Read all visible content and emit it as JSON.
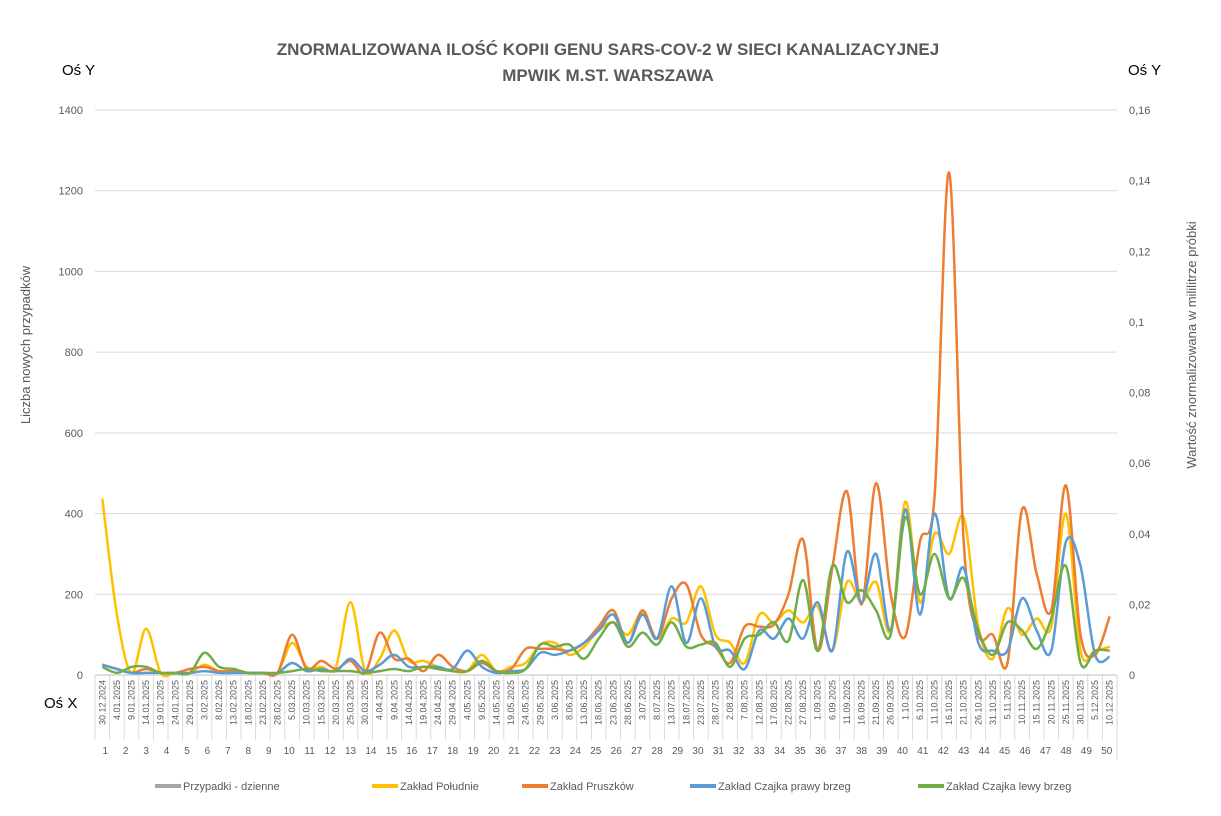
{
  "chart_data": {
    "type": "line",
    "title": [
      "ZNORMALIZOWANA ILOŚĆ KOPII GENU SARS-COV-2 W SIECI KANALIZACYJNEJ",
      "MPWIK M.ST. WARSZAWA"
    ],
    "y_axis_name": "Oś Y",
    "y2_axis_name": "Oś Y",
    "x_axis_name": "Oś X",
    "y_label": "Liczba nowych przypadków",
    "y2_label": "Wartość znormalizowana  w mililitrze próbki",
    "categories": [
      "30.12.2024",
      "4.01.2025",
      "9.01.2025",
      "14.01.2025",
      "19.01.2025",
      "24.01.2025",
      "29.01.2025",
      "3.02.2025",
      "8.02.2025",
      "13.02.2025",
      "18.02.2025",
      "23.02.2025",
      "28.02.2025",
      "5.03.2025",
      "10.03.2025",
      "15.03.2025",
      "20.03.2025",
      "25.03.2025",
      "30.03.2025",
      "4.04.2025",
      "9.04.2025",
      "14.04.2025",
      "19.04.2025",
      "24.04.2025",
      "29.04.2025",
      "4.05.2025",
      "9.05.2025",
      "14.05.2025",
      "19.05.2025",
      "24.05.2025",
      "29.05.2025",
      "3.06.2025",
      "8.06.2025",
      "13.06.2025",
      "18.06.2025",
      "23.06.2025",
      "28.06.2025",
      "3.07.2025",
      "8.07.2025",
      "13.07.2025",
      "18.07.2025",
      "23.07.2025",
      "28.07.2025",
      "2.08.2025",
      "7.08.2025",
      "12.08.2025",
      "17.08.2025",
      "22.08.2025",
      "27.08.2025",
      "1.09.2025",
      "6.09.2025",
      "11.09.2025",
      "16.09.2025",
      "21.09.2025",
      "26.09.2025",
      "1.10.2025",
      "6.10.2025",
      "11.10.2025",
      "16.10.2025",
      "21.10.2025",
      "26.10.2025",
      "31.10.2025",
      "5.11.2025",
      "10.11.2025",
      "15.11.2025",
      "20.11.2025",
      "25.11.2025",
      "30.11.2025",
      "5.12.2025",
      "10.12.2025"
    ],
    "weeks": [
      1,
      2,
      3,
      4,
      5,
      6,
      7,
      8,
      9,
      10,
      11,
      12,
      13,
      14,
      15,
      16,
      17,
      18,
      19,
      20,
      21,
      22,
      23,
      24,
      25,
      26,
      27,
      28,
      29,
      30,
      31,
      32,
      33,
      34,
      35,
      36,
      37,
      38,
      39,
      40,
      41,
      42,
      43,
      44,
      45,
      46,
      47,
      48,
      49,
      50
    ],
    "ylim": [
      0,
      1400
    ],
    "yticks": [
      0,
      200,
      400,
      600,
      800,
      1000,
      1200,
      1400
    ],
    "y2lim": [
      0,
      0.16
    ],
    "y2ticks": [
      0,
      {
        "value": 0.02,
        "label": "0,02"
      },
      {
        "value": 0.04,
        "label": "0,04"
      },
      {
        "value": 0.06,
        "label": "0,06"
      },
      {
        "value": 0.08,
        "label": "0,08"
      },
      {
        "value": 0.1,
        "label": "0,1"
      },
      {
        "value": 0.12,
        "label": "0,12"
      },
      {
        "value": 0.14,
        "label": "0,14"
      },
      {
        "value": 0.16,
        "label": "0,16"
      }
    ],
    "grid": true,
    "legend": "bottom",
    "series": [
      {
        "name": "Przypadki - dzienne",
        "color": "#a5a5a5",
        "axis": "y",
        "values": [
          null,
          null,
          null,
          null,
          null,
          null,
          null,
          null,
          null,
          null,
          null,
          null,
          null,
          null,
          null,
          null,
          null,
          null,
          null,
          null,
          null,
          null,
          null,
          null,
          null,
          null,
          null,
          null,
          null,
          null,
          null,
          null,
          null,
          null,
          null,
          null,
          null,
          null,
          null,
          null,
          null,
          null,
          null,
          null,
          null,
          null,
          null,
          null,
          null,
          null,
          null,
          null,
          null,
          null,
          null,
          null,
          null,
          null,
          null,
          null,
          null,
          null,
          null,
          null,
          null,
          null,
          null,
          null,
          null,
          null
        ]
      },
      {
        "name": "Zakład Południe",
        "color": "#ffc000",
        "axis": "y2",
        "values": [
          0.05,
          0.0171,
          0.0006,
          0.0131,
          0.0006,
          0.0006,
          0.0006,
          0.0029,
          0.0011,
          0.0011,
          0.0006,
          0.0006,
          0.0006,
          0.0091,
          0.0023,
          0.0023,
          0.0023,
          0.0206,
          0.0011,
          0.0046,
          0.0126,
          0.004,
          0.004,
          0.0023,
          0.0011,
          0.0011,
          0.0057,
          0.0011,
          0.0023,
          0.0034,
          0.0086,
          0.0091,
          0.0057,
          0.008,
          0.0126,
          0.0149,
          0.0114,
          0.0177,
          0.0103,
          0.016,
          0.0149,
          0.0251,
          0.0114,
          0.0091,
          0.0034,
          0.0171,
          0.0149,
          0.0183,
          0.0149,
          0.0194,
          0.0069,
          0.0263,
          0.0206,
          0.0263,
          0.0126,
          0.0491,
          0.0206,
          0.04,
          0.0343,
          0.0446,
          0.0137,
          0.0046,
          0.0189,
          0.0114,
          0.016,
          0.0137,
          0.0457,
          0.0069,
          0.0069,
          0.008
        ]
      },
      {
        "name": "Zakład Pruszków",
        "color": "#ed7d31",
        "axis": "y2",
        "values": [
          0.0029,
          0.0017,
          0.0006,
          0.0017,
          0.0006,
          0.0006,
          0.0017,
          0.0023,
          0.0011,
          0.0011,
          0.0006,
          0.0006,
          0.0006,
          0.0114,
          0.0017,
          0.004,
          0.0017,
          0.004,
          0.0006,
          0.012,
          0.0046,
          0.0046,
          0.0011,
          0.0057,
          0.0023,
          0.0011,
          0.0034,
          0.0011,
          0.0017,
          0.0074,
          0.0074,
          0.0074,
          0.0069,
          0.0091,
          0.0137,
          0.0183,
          0.0091,
          0.0183,
          0.0103,
          0.0217,
          0.0257,
          0.0114,
          0.008,
          0.0034,
          0.0137,
          0.0137,
          0.0143,
          0.0229,
          0.0383,
          0.0069,
          0.0303,
          0.052,
          0.02,
          0.0543,
          0.0229,
          0.0109,
          0.0377,
          0.0503,
          0.1423,
          0.0377,
          0.0114,
          0.0114,
          0.0034,
          0.0469,
          0.0286,
          0.0183,
          0.0537,
          0.0114,
          0.0057,
          0.0166
        ]
      },
      {
        "name": "Zakład Czajka prawy brzeg",
        "color": "#5b9bd5",
        "axis": "y2",
        "values": [
          0.0029,
          0.0017,
          0.0006,
          0.0006,
          0.0006,
          0.0006,
          0.0006,
          0.0011,
          0.0006,
          0.0006,
          0.0006,
          0.0006,
          0.0006,
          0.0034,
          0.0011,
          0.0017,
          0.0011,
          0.0046,
          0.0011,
          0.0029,
          0.0057,
          0.0023,
          0.0023,
          0.0023,
          0.0017,
          0.0069,
          0.0023,
          0.0006,
          0.0011,
          0.0017,
          0.0063,
          0.0057,
          0.0069,
          0.0091,
          0.0126,
          0.0171,
          0.0091,
          0.0171,
          0.0103,
          0.0251,
          0.0091,
          0.0217,
          0.008,
          0.0069,
          0.0017,
          0.0126,
          0.0103,
          0.016,
          0.0103,
          0.0206,
          0.0069,
          0.0349,
          0.0206,
          0.0343,
          0.0126,
          0.0469,
          0.0171,
          0.0457,
          0.0217,
          0.0303,
          0.0091,
          0.0069,
          0.0069,
          0.0217,
          0.0126,
          0.0069,
          0.0377,
          0.0309,
          0.0057,
          0.0051
        ]
      },
      {
        "name": "Zakład Czajka lewy brzeg",
        "color": "#70ad47",
        "axis": "y2",
        "values": [
          0.0023,
          0.0006,
          0.0023,
          0.0023,
          0.0006,
          0.0006,
          0.0006,
          0.0063,
          0.0023,
          0.0017,
          0.0006,
          0.0006,
          0.0006,
          0.0011,
          0.0017,
          0.0011,
          0.0011,
          0.0011,
          0.0006,
          0.0011,
          0.0017,
          0.0011,
          0.0023,
          0.0017,
          0.0011,
          0.0011,
          0.004,
          0.0011,
          0.0006,
          0.0017,
          0.0086,
          0.008,
          0.0086,
          0.0046,
          0.0103,
          0.0149,
          0.008,
          0.012,
          0.0086,
          0.0149,
          0.008,
          0.0086,
          0.0091,
          0.0023,
          0.0103,
          0.0114,
          0.0149,
          0.0097,
          0.0269,
          0.0069,
          0.0309,
          0.0206,
          0.024,
          0.0183,
          0.0114,
          0.0446,
          0.0229,
          0.0343,
          0.0217,
          0.0274,
          0.0126,
          0.0057,
          0.0149,
          0.0126,
          0.0074,
          0.016,
          0.0309,
          0.0034,
          0.0069,
          0.0069
        ]
      }
    ]
  }
}
